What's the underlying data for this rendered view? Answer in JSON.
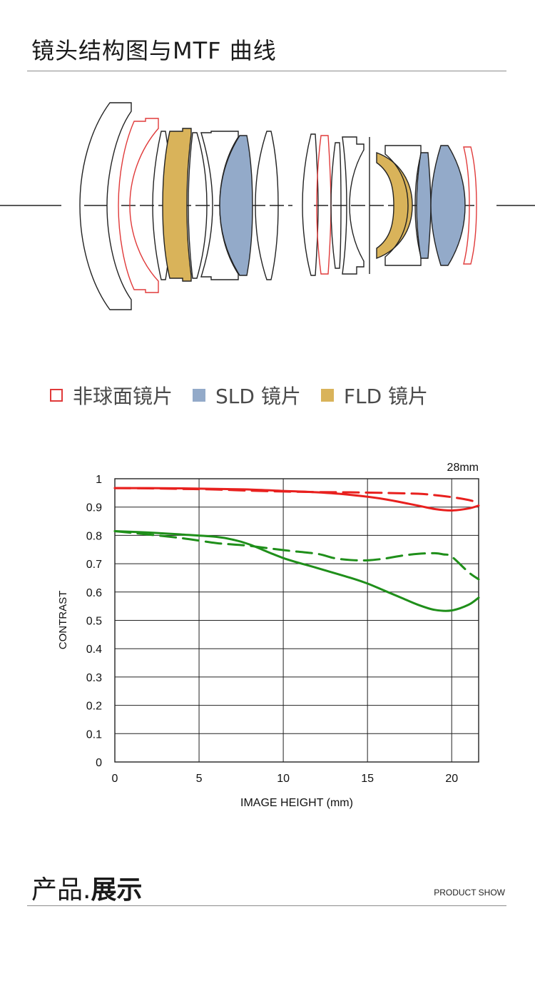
{
  "header": {
    "title": "镜头结构图与MTF 曲线"
  },
  "legend": [
    {
      "label": "非球面镜片",
      "kind": "outline",
      "color": "#e03a3a"
    },
    {
      "label": "SLD 镜片",
      "kind": "fill",
      "color": "#93aac9"
    },
    {
      "label": "FLD 镜片",
      "kind": "fill",
      "color": "#d9b35a"
    }
  ],
  "chart_data": {
    "type": "line",
    "title": "28mm",
    "xlabel": "IMAGE HEIGHT (mm)",
    "ylabel": "CONTRAST",
    "xlim": [
      0,
      21.6
    ],
    "ylim": [
      0,
      1
    ],
    "x_ticks": [
      0,
      5,
      10,
      15,
      20
    ],
    "y_ticks": [
      0,
      0.1,
      0.2,
      0.3,
      0.4,
      0.5,
      0.6,
      0.7,
      0.8,
      0.9,
      1
    ],
    "grid": true,
    "series": [
      {
        "color": "#e8201e",
        "dash": false,
        "x": [
          0,
          2,
          4,
          6,
          8,
          10,
          12,
          14,
          16,
          18,
          19,
          20,
          21,
          21.6
        ],
        "y": [
          0.967,
          0.967,
          0.966,
          0.964,
          0.962,
          0.957,
          0.952,
          0.943,
          0.928,
          0.905,
          0.893,
          0.888,
          0.895,
          0.905
        ]
      },
      {
        "color": "#e8201e",
        "dash": true,
        "x": [
          0,
          2,
          4,
          6,
          8,
          10,
          12,
          14,
          16,
          18,
          19,
          20,
          21,
          21.6
        ],
        "y": [
          0.967,
          0.966,
          0.964,
          0.962,
          0.958,
          0.955,
          0.953,
          0.952,
          0.95,
          0.947,
          0.942,
          0.935,
          0.925,
          0.915
        ]
      },
      {
        "color": "#1f8f1a",
        "dash": false,
        "x": [
          0,
          2,
          4,
          6,
          7,
          8,
          10,
          12,
          14,
          15,
          16,
          17,
          18,
          19,
          20,
          21,
          21.6
        ],
        "y": [
          0.815,
          0.81,
          0.803,
          0.795,
          0.785,
          0.768,
          0.72,
          0.685,
          0.65,
          0.63,
          0.605,
          0.58,
          0.555,
          0.537,
          0.535,
          0.555,
          0.58
        ]
      },
      {
        "color": "#1f8f1a",
        "dash": true,
        "x": [
          0,
          2,
          4,
          6,
          7,
          8,
          10,
          12,
          13,
          14,
          15,
          16,
          17,
          18,
          19,
          19.5,
          20,
          21,
          21.6
        ],
        "y": [
          0.815,
          0.803,
          0.79,
          0.773,
          0.768,
          0.763,
          0.748,
          0.735,
          0.72,
          0.713,
          0.712,
          0.718,
          0.728,
          0.735,
          0.737,
          0.733,
          0.725,
          0.67,
          0.645
        ]
      }
    ]
  },
  "footer": {
    "title_light": "产品.",
    "title_bold": "展示",
    "subtitle": "PRODUCT SHOW"
  }
}
